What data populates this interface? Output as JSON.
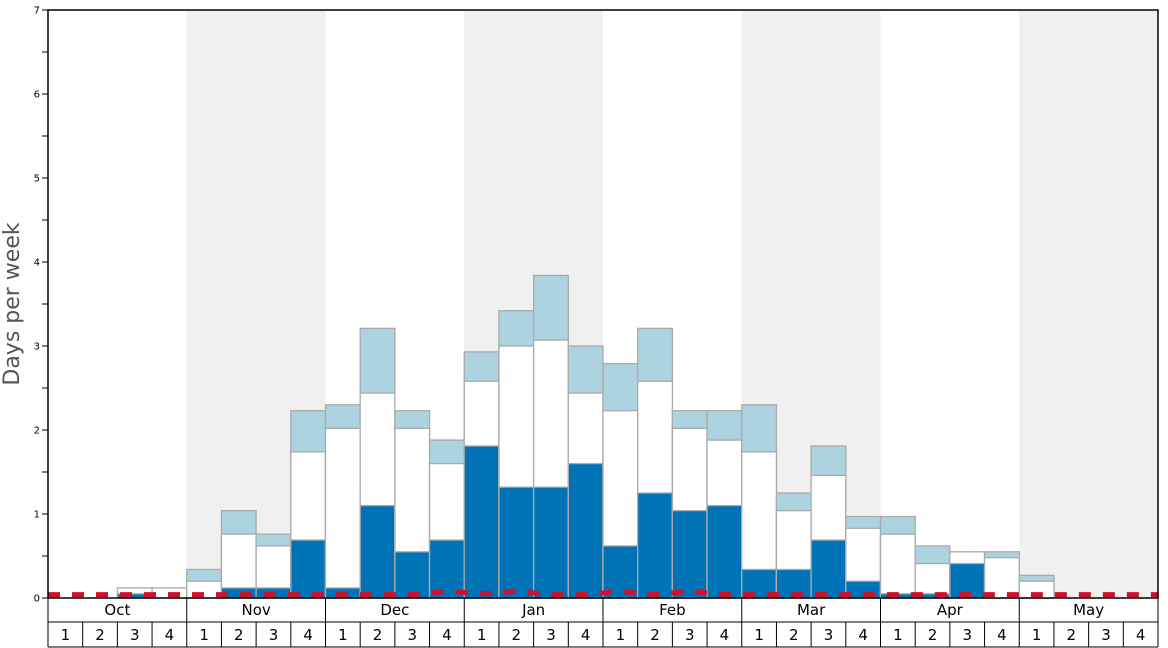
{
  "chart_data": {
    "type": "bar",
    "ylabel": "Days per week",
    "ylim": [
      0,
      7
    ],
    "yticks": [
      0,
      1,
      2,
      3,
      4,
      5,
      6,
      7
    ],
    "months": [
      "Oct",
      "Nov",
      "Dec",
      "Jan",
      "Feb",
      "Mar",
      "Apr",
      "May"
    ],
    "weeks": [
      "1",
      "2",
      "3",
      "4"
    ],
    "shaded_months": [
      "Nov",
      "Jan",
      "Mar",
      "May"
    ],
    "series": [
      {
        "fill": "#0073b7",
        "values": [
          0,
          0,
          0.05,
          0,
          0,
          0.12,
          0.12,
          0.69,
          0.12,
          1.1,
          0.55,
          0.69,
          1.81,
          1.32,
          1.32,
          1.6,
          0.62,
          1.25,
          1.04,
          1.1,
          0.34,
          0.34,
          0.69,
          0.2,
          0.05,
          0.05,
          0.41,
          0,
          0,
          0,
          0,
          0
        ]
      },
      {
        "fill": "#ffffff",
        "values": [
          0,
          0,
          0.12,
          0.12,
          0.2,
          0.76,
          0.62,
          1.74,
          2.02,
          2.44,
          2.02,
          1.6,
          2.58,
          3.0,
          3.07,
          2.44,
          2.23,
          2.58,
          2.02,
          1.88,
          1.74,
          1.04,
          1.46,
          0.83,
          0.76,
          0.41,
          0.55,
          0.48,
          0.2,
          0,
          0,
          0
        ]
      },
      {
        "fill": "#add3e0",
        "values": [
          0,
          0,
          0,
          0,
          0.34,
          1.04,
          0.76,
          2.23,
          2.3,
          3.21,
          2.23,
          1.88,
          2.93,
          3.42,
          3.84,
          3.0,
          2.79,
          3.21,
          2.23,
          2.23,
          2.3,
          1.25,
          1.81,
          0.97,
          0.97,
          0.62,
          0,
          0.55,
          0.27,
          0,
          0,
          0
        ]
      },
      {
        "type": "line",
        "style": "dashed",
        "color": "#d0102a",
        "values": [
          0.04,
          0.04,
          0.04,
          0.04,
          0.04,
          0.04,
          0.04,
          0.04,
          0.04,
          0.04,
          0.04,
          0.08,
          0.05,
          0.08,
          0.04,
          0.04,
          0.08,
          0.04,
          0.08,
          0.04,
          0.04,
          0.04,
          0.04,
          0.04,
          0.04,
          0.04,
          0.04,
          0.04,
          0.04,
          0.04,
          0.04,
          0.04
        ]
      }
    ],
    "grid": false
  }
}
